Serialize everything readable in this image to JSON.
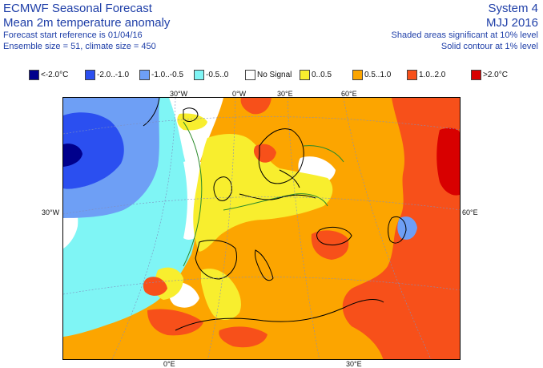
{
  "header": {
    "title": "ECMWF Seasonal Forecast",
    "subtitle": "Mean 2m temperature anomaly",
    "line3": "Forecast start reference is 01/04/16",
    "line4": "Ensemble size = 51, climate size = 450",
    "system": "System 4",
    "period": "MJJ 2016",
    "note1": "Shaded areas significant at 10% level",
    "note2": "Solid contour at 1% level"
  },
  "legend": [
    {
      "label": "<-2.0°C",
      "color": "#00008c"
    },
    {
      "label": "-2.0..-1.0",
      "color": "#2b4ff0"
    },
    {
      "label": "-1.0..-0.5",
      "color": "#6e9ff5"
    },
    {
      "label": "-0.5..0",
      "color": "#7ff5f5"
    },
    {
      "label": "No Signal",
      "color": "#ffffff"
    },
    {
      "label": "0..0.5",
      "color": "#f8ee2e"
    },
    {
      "label": "0.5..1.0",
      "color": "#fca500"
    },
    {
      "label": "1.0..2.0",
      "color": "#f7501a"
    },
    {
      "label": ">2.0°C",
      "color": "#d80000"
    }
  ],
  "axes": {
    "top_30w": "30°W",
    "top_0w": "0°W",
    "top_30e": "30°E",
    "top_60e": "60°E",
    "left_30w": "30°W",
    "right_60e": "60°E",
    "bottom_0e": "0°E",
    "bottom_30e": "30°E"
  }
}
